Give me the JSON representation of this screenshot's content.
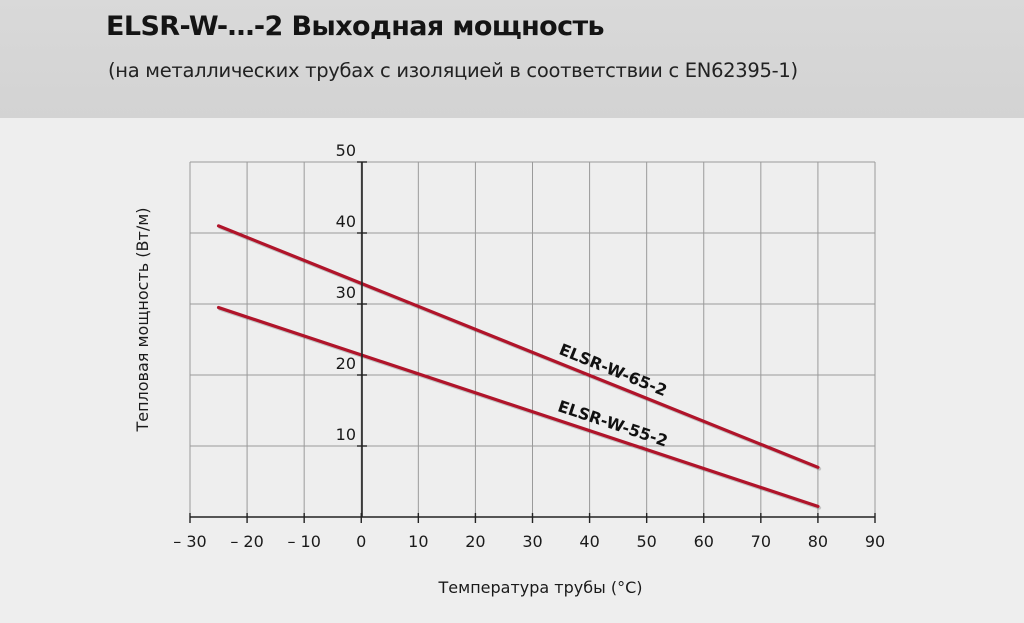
{
  "header": {
    "title": "ELSR-W-…-2 Выходная мощность",
    "subtitle": "(на металлических трубах с изоляцией в соответствии с EN62395-1)"
  },
  "colors": {
    "series": "#b0142a",
    "header_bg": "#d6d6d6",
    "page_bg": "#eeeeee",
    "grid": "#9a9a9a"
  },
  "chart_data": {
    "type": "line",
    "xlabel": "Температура трубы (°С)",
    "ylabel": "Тепловая мощность (Вт/м)",
    "xlim": [
      -30,
      90
    ],
    "ylim": [
      0,
      50
    ],
    "x_ticks": [
      -30,
      -20,
      -10,
      0,
      10,
      20,
      30,
      40,
      50,
      60,
      70,
      80,
      90
    ],
    "x_tick_labels": [
      "– 30",
      "– 20",
      "– 10",
      "0",
      "10",
      "20",
      "30",
      "40",
      "50",
      "60",
      "70",
      "80",
      "90"
    ],
    "y_ticks": [
      10,
      20,
      30,
      40,
      50
    ],
    "y_tick_labels": [
      "10",
      "20",
      "30",
      "40",
      "50"
    ],
    "grid": true,
    "series": [
      {
        "name": "ELSR-W-65-2",
        "x": [
          -25,
          80
        ],
        "y": [
          41,
          7
        ]
      },
      {
        "name": "ELSR-W-55-2",
        "x": [
          -25,
          80
        ],
        "y": [
          29.5,
          1.5
        ]
      }
    ]
  }
}
